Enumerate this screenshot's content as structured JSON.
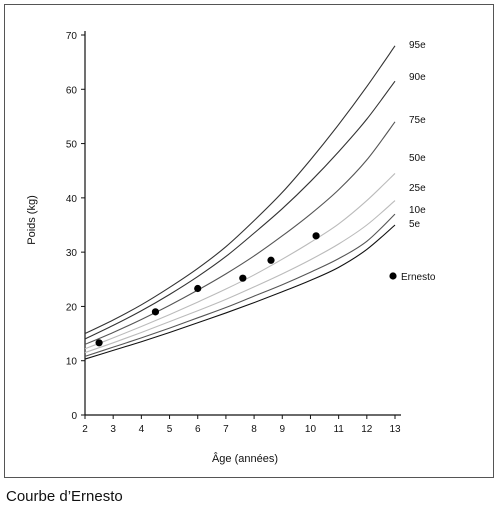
{
  "caption": "Courbe d’Ernesto",
  "chart_data": {
    "type": "line",
    "xlabel": "Âge (années)",
    "ylabel": "Poids (kg)",
    "xlim": [
      2,
      13
    ],
    "ylim": [
      0,
      70
    ],
    "xticks": [
      "2",
      "3",
      "4",
      "5",
      "6",
      "7",
      "8",
      "9",
      "10",
      "11",
      "12",
      "13"
    ],
    "yticks": [
      "0",
      "10",
      "20",
      "30",
      "40",
      "50",
      "60",
      "70"
    ],
    "grid": false,
    "series": [
      {
        "name": "95e",
        "color": "#333333",
        "x": [
          2,
          3,
          4,
          5,
          6,
          7,
          8,
          9,
          10,
          11,
          12,
          13
        ],
        "y": [
          15.0,
          17.5,
          20.3,
          23.5,
          27.0,
          31.0,
          35.8,
          41.0,
          47.0,
          53.5,
          60.5,
          68.0
        ]
      },
      {
        "name": "90e",
        "color": "#333333",
        "x": [
          2,
          3,
          4,
          5,
          6,
          7,
          8,
          9,
          10,
          11,
          12,
          13
        ],
        "y": [
          14.0,
          16.5,
          19.2,
          22.2,
          25.5,
          29.2,
          33.5,
          38.0,
          43.0,
          48.5,
          54.5,
          61.5
        ]
      },
      {
        "name": "75e",
        "color": "#555555",
        "x": [
          2,
          3,
          4,
          5,
          6,
          7,
          8,
          9,
          10,
          11,
          12,
          13
        ],
        "y": [
          13.0,
          15.2,
          17.6,
          20.2,
          23.0,
          26.0,
          29.3,
          33.0,
          37.0,
          41.5,
          47.0,
          54.0
        ]
      },
      {
        "name": "50e",
        "color": "#bbbbbb",
        "x": [
          2,
          3,
          4,
          5,
          6,
          7,
          8,
          9,
          10,
          11,
          12,
          13
        ],
        "y": [
          12.2,
          14.2,
          16.3,
          18.5,
          20.8,
          23.2,
          25.8,
          28.7,
          31.8,
          35.2,
          39.5,
          44.5
        ]
      },
      {
        "name": "25e",
        "color": "#bbbbbb",
        "x": [
          2,
          3,
          4,
          5,
          6,
          7,
          8,
          9,
          10,
          11,
          12,
          13
        ],
        "y": [
          11.5,
          13.3,
          15.2,
          17.2,
          19.2,
          21.3,
          23.6,
          26.0,
          28.6,
          31.5,
          35.0,
          39.5
        ]
      },
      {
        "name": "10e",
        "color": "#555555",
        "x": [
          2,
          3,
          4,
          5,
          6,
          7,
          8,
          9,
          10,
          11,
          12,
          13
        ],
        "y": [
          10.8,
          12.5,
          14.2,
          16.0,
          17.9,
          19.8,
          21.9,
          24.0,
          26.3,
          28.8,
          32.0,
          37.0
        ]
      },
      {
        "name": "5e",
        "color": "#111111",
        "x": [
          2,
          3,
          4,
          5,
          6,
          7,
          8,
          9,
          10,
          11,
          12,
          13
        ],
        "y": [
          10.3,
          11.9,
          13.5,
          15.2,
          17.0,
          18.8,
          20.7,
          22.7,
          24.8,
          27.2,
          30.5,
          35.0
        ]
      }
    ],
    "points": {
      "name": "Ernesto",
      "x": [
        2.5,
        4.5,
        6.0,
        7.6,
        8.6,
        10.2
      ],
      "y": [
        13.3,
        19.0,
        23.3,
        25.2,
        28.5,
        33.0
      ]
    }
  }
}
